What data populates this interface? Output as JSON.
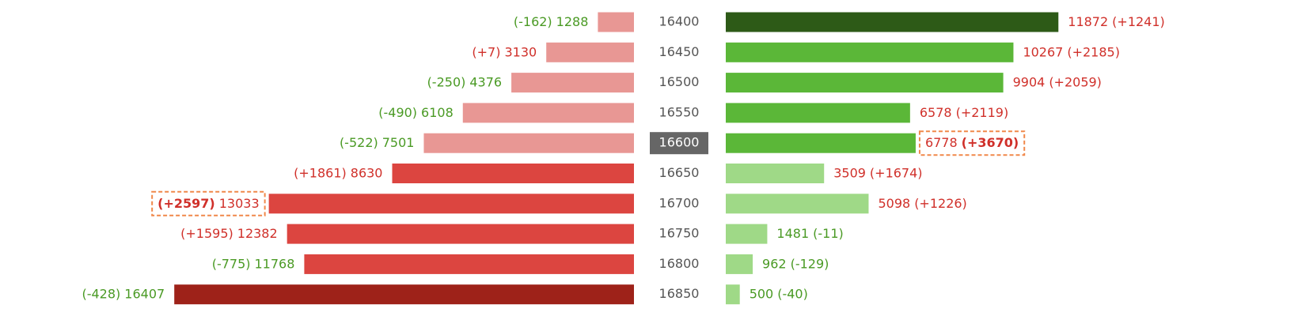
{
  "chart_data": {
    "type": "butterfly",
    "categories": [
      16400,
      16450,
      16500,
      16550,
      16600,
      16650,
      16700,
      16750,
      16800,
      16850
    ],
    "highlight_category": 4,
    "series": [
      {
        "side": "left",
        "values": [
          1288,
          3130,
          4376,
          6108,
          7501,
          8630,
          13033,
          12382,
          11768,
          16407
        ],
        "changes": [
          -162,
          7,
          -250,
          -490,
          -522,
          1861,
          2597,
          1595,
          -775,
          -428
        ],
        "change_labels": [
          "(-162)",
          "(+7)",
          "(-250)",
          "(-490)",
          "(-522)",
          "(+1861)",
          "(+2597)",
          "(+1595)",
          "(-775)",
          "(-428)"
        ],
        "colors": [
          "#e89794",
          "#e89794",
          "#e89794",
          "#e89794",
          "#e89794",
          "#dc4540",
          "#dc4540",
          "#dc4540",
          "#dc4540",
          "#9e2219"
        ],
        "highlight": 6
      },
      {
        "side": "right",
        "values": [
          11872,
          10267,
          9904,
          6578,
          6778,
          3509,
          5098,
          1481,
          962,
          500
        ],
        "changes": [
          1241,
          2185,
          2059,
          2119,
          3670,
          1674,
          1226,
          -11,
          -129,
          -40
        ],
        "change_labels": [
          "(+1241)",
          "(+2185)",
          "(+2059)",
          "(+2119)",
          "(+3670)",
          "(+1674)",
          "(+1226)",
          "(-11)",
          "(-129)",
          "(-40)"
        ],
        "colors": [
          "#2d5a17",
          "#5bb738",
          "#5bb738",
          "#5bb738",
          "#5bb738",
          "#9fd987",
          "#9fd987",
          "#9fd987",
          "#9fd987",
          "#9fd987"
        ],
        "highlight": 4
      }
    ]
  }
}
